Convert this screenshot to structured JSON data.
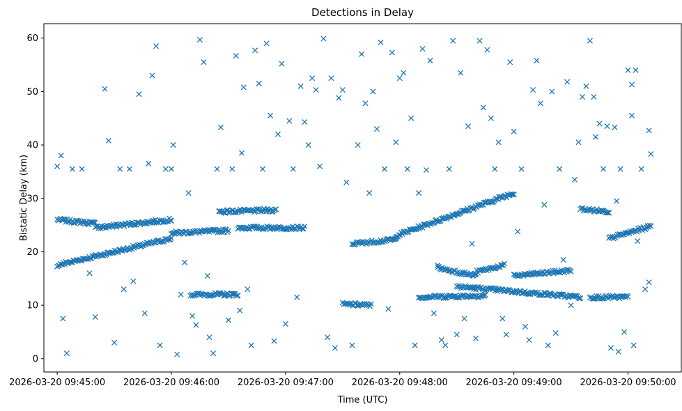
{
  "chart_data": {
    "type": "scatter",
    "title": "Detections in Delay",
    "xlabel": "Time (UTC)",
    "ylabel": "Bistatic Delay (km)",
    "marker": "x",
    "color": "#1f77b4",
    "grid": false,
    "legend": "none",
    "xlim": [
      "2026-03-20 09:44:53",
      "2026-03-20 09:50:28"
    ],
    "ylim": [
      -2.5,
      62.7
    ],
    "x_ticks": [
      "2026-03-20 09:45:00",
      "2026-03-20 09:46:00",
      "2026-03-20 09:47:00",
      "2026-03-20 09:48:00",
      "2026-03-20 09:49:00",
      "2026-03-20 09:50:00"
    ],
    "y_ticks": [
      0,
      10,
      20,
      30,
      40,
      50,
      60
    ],
    "tracks": [
      {
        "from": "2026-03-20 09:45:00",
        "to": "2026-03-20 09:45:20",
        "y_start": 26.0,
        "y_end": 25.3
      },
      {
        "from": "2026-03-20 09:45:00",
        "to": "2026-03-20 09:46:00",
        "y_start": 17.5,
        "y_end": 22.5
      },
      {
        "from": "2026-03-20 09:45:20",
        "to": "2026-03-20 09:46:00",
        "y_start": 24.5,
        "y_end": 26.0
      },
      {
        "from": "2026-03-20 09:46:00",
        "to": "2026-03-20 09:46:30",
        "y_start": 23.5,
        "y_end": 24.0
      },
      {
        "from": "2026-03-20 09:46:10",
        "to": "2026-03-20 09:46:35",
        "y_start": 12.0,
        "y_end": 12.0
      },
      {
        "from": "2026-03-20 09:46:25",
        "to": "2026-03-20 09:46:55",
        "y_start": 27.5,
        "y_end": 27.8
      },
      {
        "from": "2026-03-20 09:46:35",
        "to": "2026-03-20 09:47:10",
        "y_start": 24.5,
        "y_end": 24.5
      },
      {
        "from": "2026-03-20 09:47:30",
        "to": "2026-03-20 09:47:45",
        "y_start": 10.2,
        "y_end": 10.0
      },
      {
        "from": "2026-03-20 09:47:35",
        "to": "2026-03-20 09:47:58",
        "y_start": 21.5,
        "y_end": 22.3
      },
      {
        "from": "2026-03-20 09:47:58",
        "to": "2026-03-20 09:49:00",
        "y_start": 23.0,
        "y_end": 31.0
      },
      {
        "from": "2026-03-20 09:48:10",
        "to": "2026-03-20 09:48:45",
        "y_start": 11.5,
        "y_end": 11.8
      },
      {
        "from": "2026-03-20 09:48:30",
        "to": "2026-03-20 09:49:35",
        "y_start": 13.5,
        "y_end": 11.5
      },
      {
        "from": "2026-03-20 09:48:20",
        "to": "2026-03-20 09:48:40",
        "y_start": 17.0,
        "y_end": 15.5
      },
      {
        "from": "2026-03-20 09:48:40",
        "to": "2026-03-20 09:48:55",
        "y_start": 16.2,
        "y_end": 17.5
      },
      {
        "from": "2026-03-20 09:49:00",
        "to": "2026-03-20 09:49:30",
        "y_start": 15.5,
        "y_end": 16.5
      },
      {
        "from": "2026-03-20 09:49:35",
        "to": "2026-03-20 09:49:50",
        "y_start": 28.0,
        "y_end": 27.5
      },
      {
        "from": "2026-03-20 09:49:40",
        "to": "2026-03-20 09:50:00",
        "y_start": 11.5,
        "y_end": 11.5
      },
      {
        "from": "2026-03-20 09:49:50",
        "to": "2026-03-20 09:50:12",
        "y_start": 22.5,
        "y_end": 24.8
      }
    ],
    "scattered_points": [
      [
        0,
        36.0
      ],
      [
        2,
        38.0
      ],
      [
        3,
        7.5
      ],
      [
        5,
        1.0
      ],
      [
        8,
        35.5
      ],
      [
        13,
        35.5
      ],
      [
        17,
        16.0
      ],
      [
        20,
        7.8
      ],
      [
        25,
        50.5
      ],
      [
        27,
        40.8
      ],
      [
        30,
        3.0
      ],
      [
        33,
        35.5
      ],
      [
        35,
        13.0
      ],
      [
        38,
        35.5
      ],
      [
        40,
        14.5
      ],
      [
        43,
        49.5
      ],
      [
        46,
        8.5
      ],
      [
        48,
        36.5
      ],
      [
        50,
        53.0
      ],
      [
        52,
        58.5
      ],
      [
        54,
        2.5
      ],
      [
        57,
        35.5
      ],
      [
        60,
        35.5
      ],
      [
        61,
        40.0
      ],
      [
        63,
        0.8
      ],
      [
        65,
        12.0
      ],
      [
        67,
        18.0
      ],
      [
        69,
        31.0
      ],
      [
        71,
        8.0
      ],
      [
        73,
        6.3
      ],
      [
        75,
        59.7
      ],
      [
        77,
        55.5
      ],
      [
        79,
        15.5
      ],
      [
        80,
        4.0
      ],
      [
        82,
        1.0
      ],
      [
        84,
        35.5
      ],
      [
        86,
        43.3
      ],
      [
        88,
        12.0
      ],
      [
        90,
        7.2
      ],
      [
        92,
        35.5
      ],
      [
        94,
        56.7
      ],
      [
        96,
        9.0
      ],
      [
        97,
        38.5
      ],
      [
        98,
        50.8
      ],
      [
        100,
        13.0
      ],
      [
        102,
        2.5
      ],
      [
        104,
        57.7
      ],
      [
        106,
        51.5
      ],
      [
        108,
        35.5
      ],
      [
        110,
        59.0
      ],
      [
        112,
        45.5
      ],
      [
        114,
        3.3
      ],
      [
        116,
        42.0
      ],
      [
        118,
        55.2
      ],
      [
        120,
        6.5
      ],
      [
        122,
        44.5
      ],
      [
        124,
        35.5
      ],
      [
        126,
        11.5
      ],
      [
        128,
        51.0
      ],
      [
        130,
        44.3
      ],
      [
        132,
        40.0
      ],
      [
        134,
        52.5
      ],
      [
        136,
        50.3
      ],
      [
        138,
        36.0
      ],
      [
        140,
        59.9
      ],
      [
        142,
        4.0
      ],
      [
        144,
        52.5
      ],
      [
        146,
        2.0
      ],
      [
        148,
        48.8
      ],
      [
        150,
        50.3
      ],
      [
        152,
        33.0
      ],
      [
        155,
        2.5
      ],
      [
        158,
        40.0
      ],
      [
        160,
        57.0
      ],
      [
        162,
        47.8
      ],
      [
        164,
        31.0
      ],
      [
        166,
        50.0
      ],
      [
        168,
        43.0
      ],
      [
        170,
        59.2
      ],
      [
        172,
        35.5
      ],
      [
        174,
        9.3
      ],
      [
        176,
        57.3
      ],
      [
        178,
        40.5
      ],
      [
        180,
        52.5
      ],
      [
        182,
        53.5
      ],
      [
        184,
        35.5
      ],
      [
        186,
        45.0
      ],
      [
        188,
        2.5
      ],
      [
        190,
        31.0
      ],
      [
        192,
        58.0
      ],
      [
        194,
        35.3
      ],
      [
        196,
        55.8
      ],
      [
        198,
        8.5
      ],
      [
        200,
        17.5
      ],
      [
        202,
        3.5
      ],
      [
        204,
        2.5
      ],
      [
        206,
        35.5
      ],
      [
        208,
        59.5
      ],
      [
        210,
        4.5
      ],
      [
        212,
        53.5
      ],
      [
        214,
        7.5
      ],
      [
        216,
        43.5
      ],
      [
        218,
        21.5
      ],
      [
        220,
        3.8
      ],
      [
        222,
        59.5
      ],
      [
        224,
        47.0
      ],
      [
        226,
        57.8
      ],
      [
        228,
        45.0
      ],
      [
        230,
        35.5
      ],
      [
        232,
        40.5
      ],
      [
        234,
        7.5
      ],
      [
        236,
        4.5
      ],
      [
        238,
        55.5
      ],
      [
        240,
        42.5
      ],
      [
        242,
        23.8
      ],
      [
        244,
        35.5
      ],
      [
        246,
        6.0
      ],
      [
        248,
        3.5
      ],
      [
        250,
        50.3
      ],
      [
        252,
        55.8
      ],
      [
        254,
        47.8
      ],
      [
        256,
        28.8
      ],
      [
        258,
        2.5
      ],
      [
        260,
        50.0
      ],
      [
        262,
        4.8
      ],
      [
        264,
        35.5
      ],
      [
        266,
        18.5
      ],
      [
        268,
        51.8
      ],
      [
        270,
        10.0
      ],
      [
        272,
        33.5
      ],
      [
        274,
        40.5
      ],
      [
        276,
        49.0
      ],
      [
        278,
        51.0
      ],
      [
        280,
        59.5
      ],
      [
        282,
        49.0
      ],
      [
        283,
        41.5
      ],
      [
        285,
        44.0
      ],
      [
        287,
        35.5
      ],
      [
        289,
        43.5
      ],
      [
        291,
        2.0
      ],
      [
        293,
        43.3
      ],
      [
        294,
        29.5
      ],
      [
        295,
        1.3
      ],
      [
        296,
        35.5
      ],
      [
        298,
        5.0
      ],
      [
        300,
        54.0
      ],
      [
        302,
        51.3
      ],
      [
        302,
        45.5
      ],
      [
        303,
        2.5
      ],
      [
        304,
        54.0
      ],
      [
        305,
        22.0
      ],
      [
        307,
        35.5
      ],
      [
        309,
        13.0
      ],
      [
        311,
        14.3
      ],
      [
        312,
        38.3
      ],
      [
        311,
        42.7
      ]
    ]
  }
}
